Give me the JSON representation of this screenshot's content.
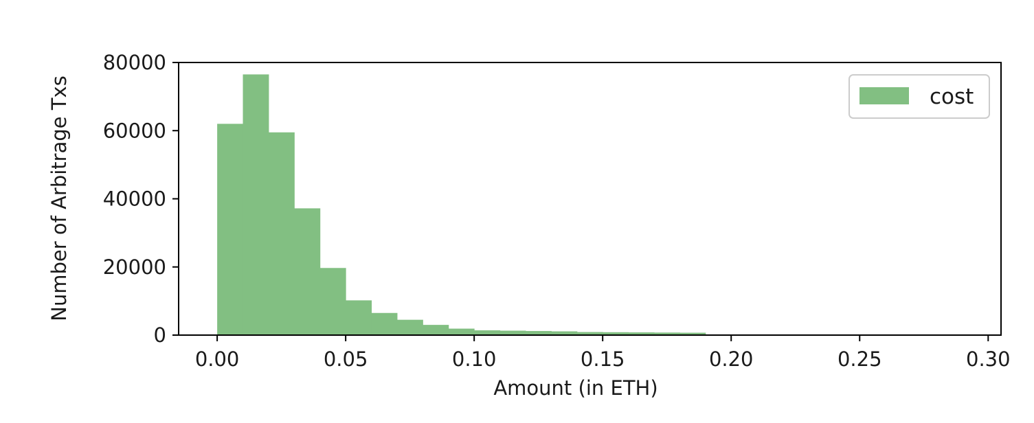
{
  "chart_data": {
    "type": "bar",
    "title": "",
    "xlabel": "Amount (in ETH)",
    "ylabel": "Number of Arbitrage Txs",
    "xlim": [
      -0.015,
      0.305
    ],
    "ylim": [
      0,
      80000
    ],
    "x_ticks": [
      0.0,
      0.05,
      0.1,
      0.15,
      0.2,
      0.25,
      0.3
    ],
    "x_tick_labels": [
      "0.00",
      "0.05",
      "0.10",
      "0.15",
      "0.20",
      "0.25",
      "0.30"
    ],
    "y_ticks": [
      0,
      20000,
      40000,
      60000,
      80000
    ],
    "y_tick_labels": [
      "0",
      "20000",
      "40000",
      "60000",
      "80000"
    ],
    "bin_edges": [
      0.0,
      0.01,
      0.02,
      0.03,
      0.04,
      0.05,
      0.06,
      0.07,
      0.08,
      0.09,
      0.1,
      0.11,
      0.12,
      0.13,
      0.14,
      0.15,
      0.16,
      0.17,
      0.18,
      0.19
    ],
    "series": [
      {
        "name": "cost",
        "color": "#82bf82",
        "values": [
          62000,
          76500,
          59500,
          37200,
          19700,
          10200,
          6500,
          4500,
          3000,
          1900,
          1400,
          1300,
          1200,
          1100,
          900,
          850,
          800,
          750,
          700
        ]
      }
    ],
    "grid": false,
    "legend": {
      "position": "top-right",
      "entries": [
        "cost"
      ]
    }
  }
}
